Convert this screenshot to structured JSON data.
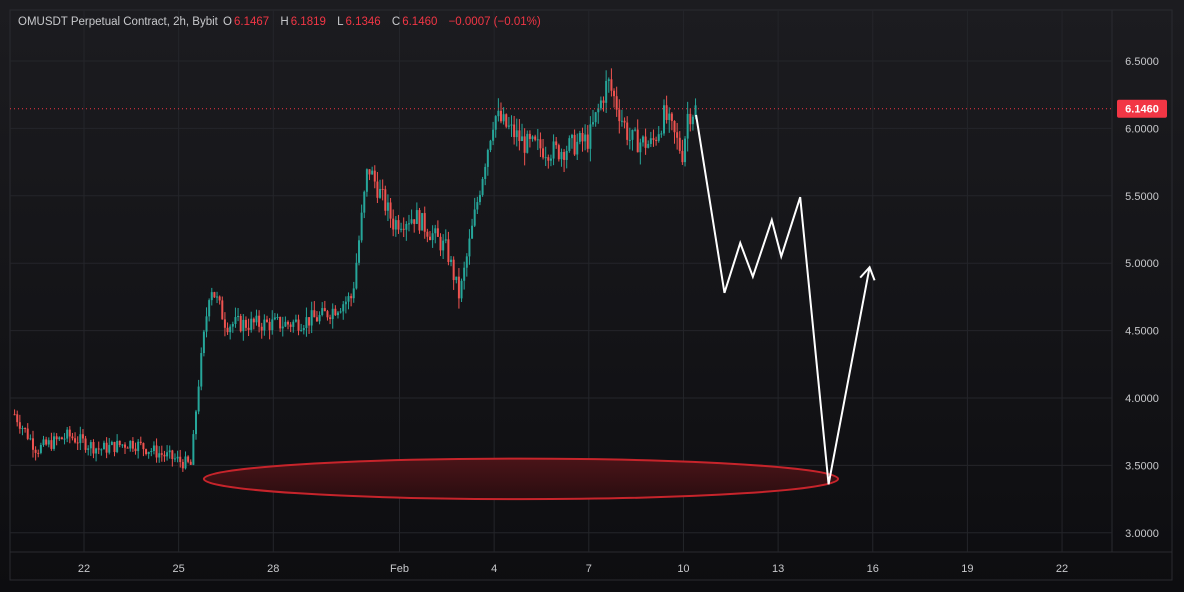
{
  "header": {
    "symbol": "OMUSDT Perpetual Contract, 2h, Bybit",
    "o_label": "O",
    "o_value": "6.1467",
    "h_label": "H",
    "h_value": "6.1819",
    "l_label": "L",
    "l_value": "6.1346",
    "c_label": "C",
    "c_value": "6.1460",
    "change": "−0.0007 (−0.01%)"
  },
  "colors": {
    "up": "#26a69a",
    "down": "#ef5350",
    "price_tag": "#f23645",
    "zone": "#c7242b",
    "projection": "#ffffff"
  },
  "chart_data": {
    "type": "candlestick",
    "title": "OMUSDT Perpetual Contract, 2h, Bybit",
    "ylim": [
      2.85,
      6.75
    ],
    "y_ticks": [
      "6.5000",
      "6.0000",
      "5.5000",
      "5.0000",
      "4.5000",
      "4.0000",
      "3.5000",
      "3.0000"
    ],
    "x_ticks": [
      {
        "label": "22",
        "day": 22
      },
      {
        "label": "25",
        "day": 25
      },
      {
        "label": "28",
        "day": 28
      },
      {
        "label": "Feb",
        "day": 32
      },
      {
        "label": "4",
        "day": 35
      },
      {
        "label": "7",
        "day": 38
      },
      {
        "label": "10",
        "day": 41
      },
      {
        "label": "13",
        "day": 44
      },
      {
        "label": "16",
        "day": 47
      },
      {
        "label": "19",
        "day": 50
      },
      {
        "label": "22",
        "day": 53
      }
    ],
    "x_note": "day index counts from Jan 1 (Feb 1 = 32)",
    "last_price": "6.1460",
    "last_price_value": 6.146,
    "price_anchors": [
      {
        "day": 19.8,
        "price": 3.88
      },
      {
        "day": 20.5,
        "price": 3.62
      },
      {
        "day": 21.5,
        "price": 3.72
      },
      {
        "day": 22.5,
        "price": 3.62
      },
      {
        "day": 23.5,
        "price": 3.67
      },
      {
        "day": 24.5,
        "price": 3.58
      },
      {
        "day": 25.4,
        "price": 3.5
      },
      {
        "day": 25.6,
        "price": 4.05
      },
      {
        "day": 26.0,
        "price": 4.85
      },
      {
        "day": 26.5,
        "price": 4.55
      },
      {
        "day": 27.5,
        "price": 4.55
      },
      {
        "day": 28.5,
        "price": 4.55
      },
      {
        "day": 29.5,
        "price": 4.6
      },
      {
        "day": 30.5,
        "price": 4.75
      },
      {
        "day": 31.0,
        "price": 5.72
      },
      {
        "day": 31.8,
        "price": 5.3
      },
      {
        "day": 32.5,
        "price": 5.35
      },
      {
        "day": 33.5,
        "price": 5.1
      },
      {
        "day": 33.9,
        "price": 4.75
      },
      {
        "day": 34.3,
        "price": 5.25
      },
      {
        "day": 34.7,
        "price": 5.75
      },
      {
        "day": 35.0,
        "price": 6.1
      },
      {
        "day": 36.0,
        "price": 5.88
      },
      {
        "day": 37.0,
        "price": 5.83
      },
      {
        "day": 38.0,
        "price": 5.92
      },
      {
        "day": 38.6,
        "price": 6.35
      },
      {
        "day": 39.3,
        "price": 5.92
      },
      {
        "day": 40.0,
        "price": 5.88
      },
      {
        "day": 40.4,
        "price": 6.1
      },
      {
        "day": 41.0,
        "price": 5.8
      },
      {
        "day": 41.1,
        "price": 6.1
      },
      {
        "day": 41.4,
        "price": 6.146
      }
    ],
    "projection_path": [
      {
        "day": 41.4,
        "price": 6.1
      },
      {
        "day": 42.3,
        "price": 4.78
      },
      {
        "day": 42.8,
        "price": 5.15
      },
      {
        "day": 43.2,
        "price": 4.9
      },
      {
        "day": 43.8,
        "price": 5.32
      },
      {
        "day": 44.1,
        "price": 5.05
      },
      {
        "day": 44.7,
        "price": 5.49
      },
      {
        "day": 45.6,
        "price": 3.36
      },
      {
        "day": 46.9,
        "price": 4.97
      }
    ],
    "support_zone": {
      "day_start": 25.8,
      "day_end": 45.9,
      "price_top": 3.55,
      "price_bottom": 3.25,
      "price_mid": 3.4
    }
  }
}
